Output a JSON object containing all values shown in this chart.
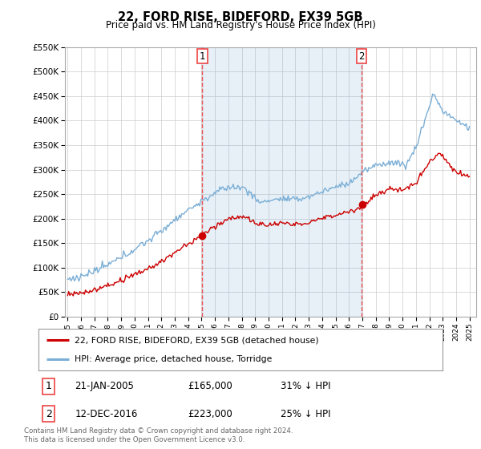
{
  "title": "22, FORD RISE, BIDEFORD, EX39 5GB",
  "subtitle": "Price paid vs. HM Land Registry's House Price Index (HPI)",
  "legend_line1": "22, FORD RISE, BIDEFORD, EX39 5GB (detached house)",
  "legend_line2": "HPI: Average price, detached house, Torridge",
  "transaction1_date": "21-JAN-2005",
  "transaction1_price": "£165,000",
  "transaction1_hpi": "31% ↓ HPI",
  "transaction2_date": "12-DEC-2016",
  "transaction2_price": "£223,000",
  "transaction2_hpi": "25% ↓ HPI",
  "footer": "Contains HM Land Registry data © Crown copyright and database right 2024.\nThis data is licensed under the Open Government Licence v3.0.",
  "red_color": "#cc0000",
  "blue_color": "#7aaed6",
  "blue_fill": "#ddeeff",
  "vline_color": "#ee4444",
  "grid_color": "#cccccc",
  "bg_color": "#ffffff",
  "ylim": [
    0,
    550000
  ],
  "xlim_start": 1994.8,
  "xlim_end": 2025.5,
  "transaction1_x": 2005.05,
  "transaction2_x": 2016.95
}
